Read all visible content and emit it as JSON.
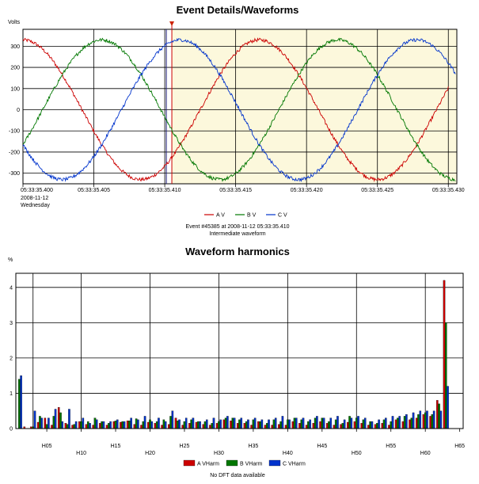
{
  "chart_data": [
    {
      "type": "line",
      "title": "Event Details/Waveforms",
      "ylabel": "Volts",
      "ylim": [
        -350,
        380
      ],
      "yticks": [
        "300",
        "200",
        "100",
        "0",
        "-100",
        "-200",
        "-300"
      ],
      "ytick_values": [
        300,
        200,
        100,
        0,
        -100,
        -200,
        -300
      ],
      "xlim": [
        0,
        30.6
      ],
      "xticks": [
        {
          "at": 0,
          "label": "05:33:35.400"
        },
        {
          "at": 5,
          "label": "05:33:35.405"
        },
        {
          "at": 10,
          "label": "05:33:35.410"
        },
        {
          "at": 15,
          "label": "05:33:35.415"
        },
        {
          "at": 20,
          "label": "05:33:35.420"
        },
        {
          "at": 25,
          "label": "05:33:35.425"
        },
        {
          "at": 30,
          "label": "05:33:35.430"
        }
      ],
      "x_date": "2008-11-12",
      "x_day": "Wednesday",
      "event_marker_at": 10.5,
      "cursor_at": 10,
      "highlight_start": 10.5,
      "series": [
        {
          "name": "A V",
          "color": "#cc0000",
          "amplitude": 330,
          "phase_deg": 90,
          "freq_hz": 60,
          "x_end": 30
        },
        {
          "name": "B V",
          "color": "#007700",
          "amplitude": 330,
          "phase_deg": -30,
          "freq_hz": 60,
          "x_end": 30.5
        },
        {
          "name": "C V",
          "color": "#0033cc",
          "amplitude": 330,
          "phase_deg": 210,
          "freq_hz": 60,
          "x_end": 30.5
        }
      ],
      "caption_line1": "Event #45385 at 2008-11-12 05:33:35.410",
      "caption_line2": "Intermediate waveform",
      "grid": true,
      "legend": "bottom"
    },
    {
      "type": "bar",
      "title": "Waveform harmonics",
      "ylabel": "%",
      "ylim": [
        0,
        4.4
      ],
      "yticks": [
        "4",
        "3",
        "2",
        "1",
        "0"
      ],
      "ytick_values": [
        4,
        3,
        2,
        1,
        0
      ],
      "xticks_row1": [
        "H05",
        "H15",
        "H25",
        "H35",
        "H45",
        "H55",
        "H65"
      ],
      "xticks_row2": [
        "H10",
        "H20",
        "H30",
        "H40",
        "H50",
        "H60"
      ],
      "categories": [
        "H01",
        "H02",
        "H03",
        "H04",
        "H05",
        "H06",
        "H07",
        "H08",
        "H09",
        "H10",
        "H11",
        "H12",
        "H13",
        "H14",
        "H15",
        "H16",
        "H17",
        "H18",
        "H19",
        "H20",
        "H21",
        "H22",
        "H23",
        "H24",
        "H25",
        "H26",
        "H27",
        "H28",
        "H29",
        "H30",
        "H31",
        "H32",
        "H33",
        "H34",
        "H35",
        "H36",
        "H37",
        "H38",
        "H39",
        "H40",
        "H41",
        "H42",
        "H43",
        "H44",
        "H45",
        "H46",
        "H47",
        "H48",
        "H49",
        "H50",
        "H51",
        "H52",
        "H53",
        "H54",
        "H55",
        "H56",
        "H57",
        "H58",
        "H59",
        "H60",
        "H61",
        "H62",
        "H63",
        "H64",
        "H65"
      ],
      "series": [
        {
          "name": "A VHarm",
          "color": "#cc0000",
          "values": [
            0,
            0.05,
            0.05,
            0.18,
            0.3,
            0.1,
            0.6,
            0.15,
            0.1,
            0.2,
            0.12,
            0.1,
            0.15,
            0.1,
            0.2,
            0.18,
            0.22,
            0.12,
            0.1,
            0.18,
            0.15,
            0.1,
            0.12,
            0.3,
            0.1,
            0.15,
            0.18,
            0.12,
            0.1,
            0.15,
            0.25,
            0.22,
            0.15,
            0.15,
            0.1,
            0.2,
            0.1,
            0.1,
            0.12,
            0.1,
            0.2,
            0.15,
            0.1,
            0.15,
            0.2,
            0.15,
            0.1,
            0.12,
            0.18,
            0.2,
            0.15,
            0.1,
            0.12,
            0.15,
            0.1,
            0.25,
            0.2,
            0.25,
            0.3,
            0.4,
            0.35,
            0.8,
            4.2,
            0,
            0
          ]
        },
        {
          "name": "B VHarm",
          "color": "#007700",
          "values": [
            1.4,
            0,
            0.05,
            0.35,
            0.12,
            0.35,
            0.45,
            0.12,
            0.12,
            0.2,
            0.2,
            0.3,
            0.2,
            0.15,
            0.22,
            0.2,
            0.22,
            0.28,
            0.2,
            0.25,
            0.2,
            0.25,
            0.35,
            0.22,
            0.2,
            0.25,
            0.2,
            0.2,
            0.15,
            0.2,
            0.3,
            0.3,
            0.25,
            0.2,
            0.25,
            0.2,
            0.15,
            0.25,
            0.2,
            0.25,
            0.3,
            0.25,
            0.2,
            0.3,
            0.3,
            0.2,
            0.25,
            0.15,
            0.35,
            0.3,
            0.25,
            0.2,
            0.15,
            0.25,
            0.2,
            0.3,
            0.35,
            0.3,
            0.4,
            0.45,
            0.4,
            0.7,
            3.0,
            0,
            0
          ]
        },
        {
          "name": "C VHarm",
          "color": "#0033cc",
          "values": [
            1.5,
            0,
            0.5,
            0.3,
            0.3,
            0.55,
            0.2,
            0.55,
            0.2,
            0.3,
            0.15,
            0.25,
            0.2,
            0.2,
            0.25,
            0.2,
            0.3,
            0.25,
            0.35,
            0.2,
            0.3,
            0.2,
            0.5,
            0.25,
            0.3,
            0.3,
            0.2,
            0.25,
            0.3,
            0.25,
            0.35,
            0.3,
            0.3,
            0.25,
            0.3,
            0.25,
            0.25,
            0.3,
            0.35,
            0.25,
            0.3,
            0.3,
            0.25,
            0.35,
            0.3,
            0.3,
            0.35,
            0.25,
            0.3,
            0.35,
            0.3,
            0.2,
            0.25,
            0.3,
            0.35,
            0.35,
            0.4,
            0.45,
            0.5,
            0.5,
            0.5,
            0.5,
            1.2,
            0,
            0
          ]
        }
      ],
      "caption": "No DFT data available",
      "grid": true,
      "legend": "bottom"
    }
  ]
}
